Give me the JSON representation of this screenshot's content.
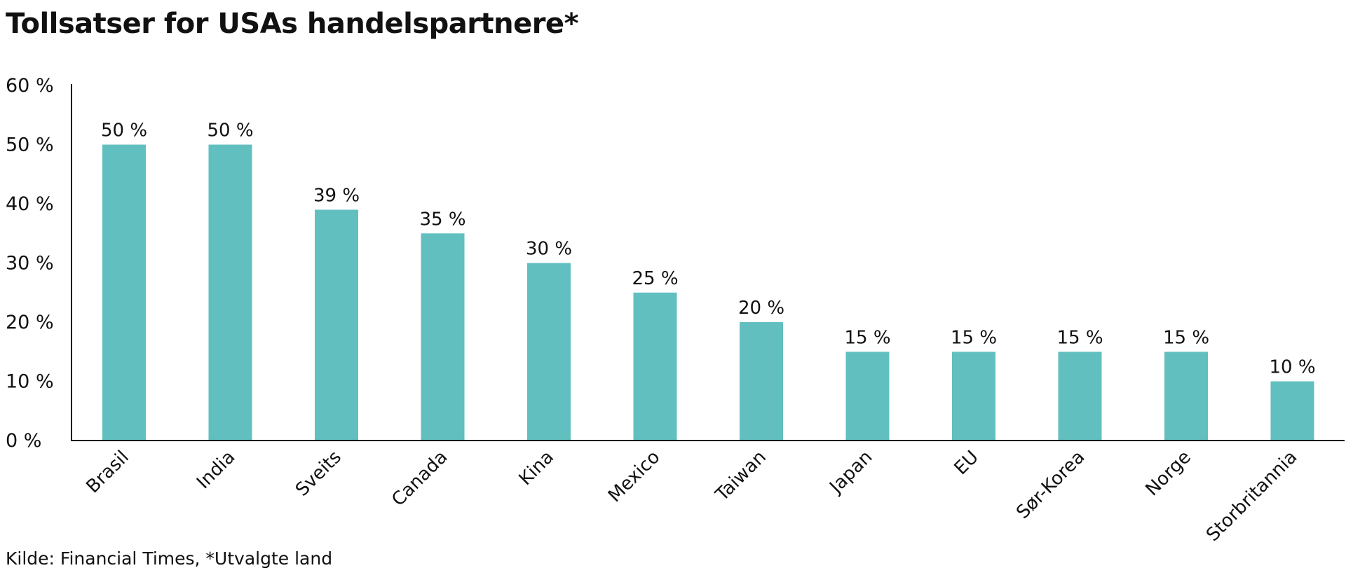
{
  "title": "Tollsatser for USAs handelspartnere*",
  "source": "Kilde: Financial Times, *Utvalgte land",
  "colors": {
    "bar": "#62bfbf",
    "axis": "#111111",
    "text": "#111111"
  },
  "chart_data": {
    "type": "bar",
    "categories": [
      "Brasil",
      "India",
      "Sveits",
      "Canada",
      "Kina",
      "Mexico",
      "Taiwan",
      "Japan",
      "EU",
      "Sør-Korea",
      "Norge",
      "Storbritannia"
    ],
    "values": [
      50,
      50,
      39,
      35,
      30,
      25,
      20,
      15,
      15,
      15,
      15,
      10
    ],
    "value_labels": [
      "50 %",
      "50 %",
      "39 %",
      "35 %",
      "30 %",
      "25 %",
      "20 %",
      "15 %",
      "15 %",
      "15 %",
      "15 %",
      "10 %"
    ],
    "y_ticks": [
      0,
      10,
      20,
      30,
      40,
      50,
      60
    ],
    "y_tick_labels": [
      "0 %",
      "10 %",
      "20 %",
      "30 %",
      "40 %",
      "50 %",
      "60 %"
    ],
    "ylim": [
      0,
      60
    ],
    "grid": false,
    "legend": "none"
  }
}
